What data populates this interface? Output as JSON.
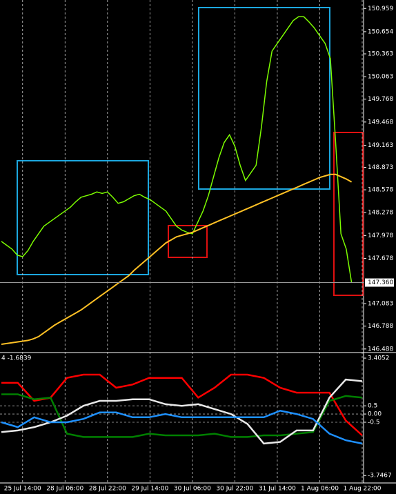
{
  "chart_data": [
    {
      "type": "line",
      "ylim": [
        146.45,
        151.07
      ],
      "yticks": [
        150.959,
        150.654,
        150.363,
        150.063,
        149.768,
        149.468,
        149.163,
        148.873,
        148.578,
        148.278,
        147.978,
        147.678,
        147.083,
        146.788,
        146.488
      ],
      "current_price": {
        "value": 147.36,
        "label": "147.360"
      },
      "xlim": [
        0,
        68
      ],
      "xticks": [
        {
          "value": 4,
          "label": "25 Jul 14:00"
        },
        {
          "value": 12,
          "label": "28 Jul 06:00"
        },
        {
          "value": 20,
          "label": "28 Jul 22:00"
        },
        {
          "value": 28,
          "label": "29 Jul 14:00"
        },
        {
          "value": 36,
          "label": "30 Jul 06:00"
        },
        {
          "value": 44,
          "label": "30 Jul 22:00"
        },
        {
          "value": 52,
          "label": "31 Jul 14:00"
        },
        {
          "value": 60,
          "label": "1 Aug 06:00"
        },
        {
          "value": 68,
          "label": "1 Aug 22:00"
        }
      ],
      "grid": true,
      "series": [
        {
          "color": "#7cfc00",
          "values": [
            147.9,
            147.85,
            147.8,
            147.72,
            147.7,
            147.78,
            147.9,
            148.0,
            148.1,
            148.15,
            148.2,
            148.25,
            148.3,
            148.35,
            148.42,
            148.48,
            148.5,
            148.52,
            148.55,
            148.53,
            148.55,
            148.48,
            148.4,
            148.42,
            148.46,
            148.5,
            148.52,
            148.48,
            148.45,
            148.4,
            148.35,
            148.3,
            148.2,
            148.1,
            148.05,
            148.02,
            148.0,
            148.15,
            148.3,
            148.5,
            148.75,
            149.0,
            149.2,
            149.3,
            149.15,
            148.9,
            148.7,
            148.8,
            148.9,
            149.4,
            150.0,
            150.4,
            150.5,
            150.6,
            150.7,
            150.8,
            150.85,
            150.85,
            150.78,
            150.7,
            150.6,
            150.5,
            150.3,
            149.2,
            148.0,
            147.8,
            147.36
          ]
        },
        {
          "color": "#ffc125",
          "values": [
            146.55,
            146.56,
            146.57,
            146.58,
            146.59,
            146.6,
            146.62,
            146.65,
            146.7,
            146.75,
            146.8,
            146.84,
            146.88,
            146.92,
            146.96,
            147.0,
            147.05,
            147.1,
            147.15,
            147.2,
            147.25,
            147.3,
            147.35,
            147.4,
            147.45,
            147.52,
            147.58,
            147.64,
            147.7,
            147.76,
            147.82,
            147.88,
            147.92,
            147.96,
            147.98,
            148.0,
            148.02,
            148.05,
            148.08,
            148.11,
            148.14,
            148.17,
            148.2,
            148.23,
            148.26,
            148.29,
            148.32,
            148.35,
            148.38,
            148.41,
            148.44,
            148.47,
            148.5,
            148.53,
            148.56,
            148.59,
            148.62,
            148.65,
            148.68,
            148.71,
            148.74,
            148.76,
            148.78,
            148.78,
            148.75,
            148.72,
            148.68
          ]
        }
      ]
    },
    {
      "type": "line",
      "title": "4 -1.6839",
      "ylim": [
        -4.2,
        3.66
      ],
      "yticks": [
        3.4052,
        0.5,
        {
          "value": 0,
          "label": "0.00"
        },
        -0.5,
        -3.7467
      ],
      "series": [
        {
          "color": "#ff0000",
          "values": [
            1.9,
            1.9,
            0.8,
            1.0,
            2.2,
            2.4,
            2.4,
            1.6,
            1.8,
            2.2,
            2.2,
            2.2,
            1.0,
            1.6,
            2.4,
            2.4,
            2.2,
            1.6,
            1.3,
            1.3,
            1.3,
            -0.4,
            -1.3
          ]
        },
        {
          "color": "#008000",
          "values": [
            1.2,
            1.2,
            0.9,
            1.0,
            -1.2,
            -1.4,
            -1.4,
            -1.4,
            -1.4,
            -1.2,
            -1.3,
            -1.3,
            -1.3,
            -1.2,
            -1.4,
            -1.4,
            -1.3,
            -1.3,
            -1.2,
            -1.1,
            0.8,
            1.1,
            1.0
          ]
        },
        {
          "color": "#e8e8e8",
          "values": [
            -1.1,
            -1.0,
            -0.8,
            -0.5,
            -0.1,
            0.5,
            0.8,
            0.8,
            0.9,
            0.9,
            0.6,
            0.5,
            0.6,
            0.3,
            0.0,
            -0.6,
            -1.8,
            -1.7,
            -1.0,
            -1.0,
            1.0,
            2.1,
            2.0
          ]
        },
        {
          "color": "#1e90ff",
          "values": [
            -0.5,
            -0.8,
            -0.2,
            -0.5,
            -0.5,
            -0.3,
            0.1,
            0.1,
            -0.2,
            -0.2,
            0.0,
            -0.2,
            -0.2,
            -0.2,
            -0.2,
            -0.2,
            -0.2,
            0.2,
            0.0,
            -0.3,
            -1.2,
            -1.6,
            -1.8
          ]
        }
      ]
    }
  ]
}
